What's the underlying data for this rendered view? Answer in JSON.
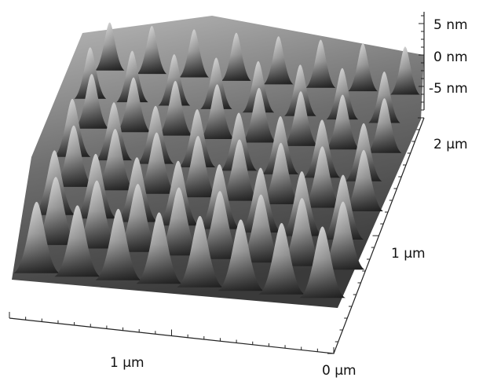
{
  "z_axis": {
    "labels": [
      "5 nm",
      "0 nm",
      "-5 nm"
    ]
  },
  "y_axis": {
    "labels": [
      "2 µm",
      "1 µm"
    ]
  },
  "x_axis": {
    "labels": [
      "1 µm"
    ]
  },
  "origin_label": "0 µm"
}
